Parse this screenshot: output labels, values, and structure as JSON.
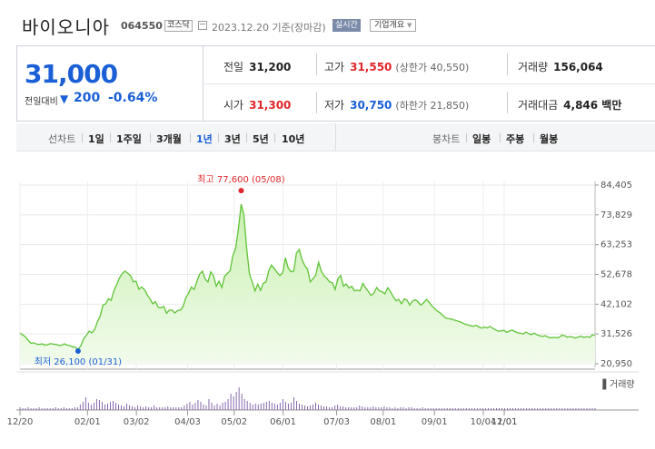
{
  "header": {
    "name": "바이오니아",
    "code": "064550",
    "market": "코스닥",
    "date_text": "2023.12.20 기준(장마감)",
    "live_label": "실시간",
    "overview_label": "기업개요"
  },
  "quote": {
    "price": "31,000",
    "vs_label": "전일대비",
    "change": "200",
    "change_pct": "-0.64%",
    "prev_label": "전일",
    "prev": "31,200",
    "high_label": "고가",
    "high": "31,550",
    "upper_limit": "(상한가 40,550)",
    "volume_label": "거래량",
    "volume": "156,064",
    "open_label": "시가",
    "open": "31,300",
    "low_label": "저가",
    "low": "30,750",
    "lower_limit": "(하한가 21,850)",
    "amount_label": "거래대금",
    "amount": "4,846 백만"
  },
  "tabs": {
    "line_label": "선차트",
    "periods": [
      "1일",
      "1주일",
      "3개월",
      "1년",
      "3년",
      "5년",
      "10년"
    ],
    "active": "1년",
    "candle_label": "봉차트",
    "candles": [
      "일봉",
      "주봉",
      "월봉"
    ]
  },
  "chart_data": {
    "type": "area",
    "title": "",
    "ylabel": "",
    "y_ticks": [
      84405,
      73829,
      63253,
      52678,
      42102,
      31526,
      20950
    ],
    "ylim": [
      20950,
      84405
    ],
    "x_ticks": [
      "12/20",
      "02/01",
      "03/02",
      "04/03",
      "05/02",
      "06/01",
      "07/03",
      "08/01",
      "09/01",
      "10/04",
      "11/01",
      "12/01"
    ],
    "grid": true,
    "max_annotation": "최고 77,600 (05/08)",
    "min_annotation": "최저 26,100 (01/31)",
    "volume_label": "거래량",
    "colors": {
      "line": "#5fc437",
      "fill": "#c9f0b1",
      "max_dot": "#e0262a",
      "min_dot": "#1a5fd6",
      "volume": "#7a57a6"
    },
    "series": [
      {
        "values": [
          31800,
          31200,
          30500,
          29200,
          28200,
          28400,
          27900,
          27800,
          28000,
          27600,
          27700,
          28100,
          27900,
          27800,
          27500,
          27500,
          28000,
          27600,
          27400,
          27000,
          26800,
          26100,
          27300,
          29800,
          31000,
          32500,
          31900,
          33100,
          35800,
          37900,
          41800,
          42200,
          44000,
          43500,
          47000,
          49100,
          51500,
          53000,
          53800,
          53100,
          52200,
          50000,
          50300,
          47400,
          48200,
          47300,
          45500,
          44000,
          42200,
          43000,
          41000,
          40800,
          41300,
          38900,
          40000,
          40000,
          39000,
          39800,
          40000,
          41300,
          44500,
          46000,
          48200,
          47300,
          50300,
          52800,
          53800,
          51000,
          50000,
          53600,
          52200,
          48500,
          50300,
          48000,
          52000,
          53000,
          54000,
          59300,
          62000,
          68800,
          77600,
          73800,
          62000,
          52800,
          50000,
          46800,
          49200,
          47000,
          49500,
          50000,
          54000,
          56000,
          54700,
          53400,
          52300,
          53200,
          58600,
          55000,
          53600,
          53800,
          60200,
          61500,
          58000,
          55800,
          54500,
          50000,
          51200,
          52500,
          57000,
          53800,
          52100,
          51300,
          50000,
          49700,
          47300,
          51200,
          52300,
          48500,
          49300,
          47800,
          48500,
          46800,
          47100,
          46800,
          49500,
          47900,
          46600,
          45200,
          46000,
          48000,
          46800,
          46500,
          45800,
          47900,
          46600,
          44800,
          43300,
          43800,
          42200,
          44000,
          43500,
          41800,
          43200,
          43700,
          42900,
          41800,
          42600,
          43800,
          42800,
          41500,
          40500,
          39600,
          39000,
          38100,
          37200,
          37000,
          36800,
          36500,
          36200,
          35900,
          35500,
          35000,
          34800,
          34400,
          34300,
          34600,
          34000,
          33600,
          34000,
          33700,
          34200,
          33500,
          33000,
          32500,
          32600,
          32800,
          32100,
          32500,
          32900,
          32400,
          32000,
          31800,
          31500,
          32200,
          31600,
          31300,
          31800,
          31200,
          30900,
          30600,
          30900,
          30400,
          30200,
          30300,
          30200,
          30300,
          31100,
          30900,
          30400,
          30600,
          30400,
          30100,
          30500,
          30700,
          30300,
          30600,
          30300,
          31200,
          31000
        ]
      }
    ],
    "volume_values": [
      3,
      2,
      2,
      3,
      2,
      2,
      2,
      3,
      2,
      2,
      2,
      2,
      2,
      3,
      2,
      2,
      3,
      2,
      2,
      2,
      3,
      3,
      6,
      9,
      14,
      8,
      6,
      8,
      12,
      11,
      9,
      6,
      7,
      9,
      10,
      8,
      6,
      5,
      4,
      7,
      5,
      4,
      3,
      5,
      4,
      3,
      4,
      3,
      3,
      5,
      3,
      3,
      3,
      3,
      4,
      3,
      3,
      3,
      3,
      3,
      5,
      7,
      9,
      6,
      8,
      11,
      9,
      6,
      5,
      12,
      8,
      5,
      7,
      5,
      8,
      9,
      12,
      18,
      15,
      20,
      25,
      18,
      12,
      10,
      8,
      6,
      7,
      6,
      7,
      8,
      9,
      10,
      8,
      7,
      6,
      8,
      12,
      9,
      7,
      8,
      14,
      10,
      7,
      6,
      5,
      4,
      5,
      6,
      8,
      6,
      5,
      4,
      4,
      3,
      3,
      5,
      6,
      4,
      4,
      3,
      3,
      3,
      3,
      3,
      5,
      4,
      3,
      3,
      3,
      4,
      3,
      3,
      3,
      4,
      3,
      3,
      2,
      3,
      2,
      3,
      3,
      2,
      3,
      3,
      2,
      2,
      2,
      3,
      2,
      2,
      2,
      2,
      2,
      2,
      2,
      2,
      2,
      2,
      2,
      2,
      2,
      2,
      2,
      2,
      2,
      2,
      2,
      2,
      2,
      2,
      2,
      2,
      2,
      2,
      2,
      2,
      2,
      2,
      2,
      2,
      2,
      2,
      2,
      2,
      2,
      2,
      2,
      2,
      2,
      2,
      2,
      2,
      2,
      2,
      2,
      2,
      2,
      2,
      2,
      2,
      2,
      2,
      2,
      2,
      2,
      2,
      2,
      2,
      2,
      2,
      2
    ]
  }
}
